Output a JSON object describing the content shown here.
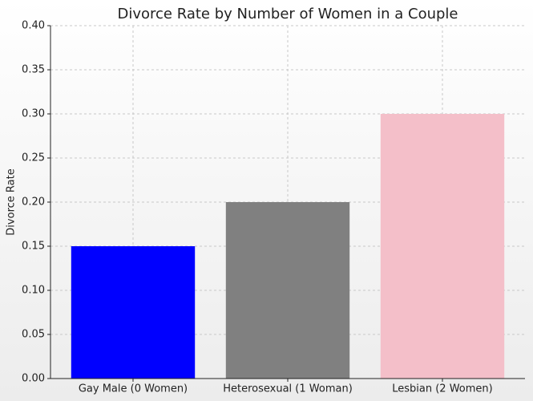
{
  "chart_data": {
    "type": "bar",
    "title": "Divorce Rate by Number of Women in a Couple",
    "y_label": "Divorce Rate",
    "categories": [
      "Gay Male (0 Women)",
      "Heterosexual (1 Woman)",
      "Lesbian (2 Women)"
    ],
    "values": [
      0.15,
      0.2,
      0.3
    ],
    "colors": [
      "#0000ff",
      "#808080",
      "#f4bfc9"
    ],
    "ylim": [
      0,
      0.4
    ],
    "yticks": [
      {
        "value": 0,
        "label": "0.00"
      },
      {
        "value": 0.05,
        "label": "0.05"
      },
      {
        "value": 0.1,
        "label": "0.10"
      },
      {
        "value": 0.15,
        "label": "0.15"
      },
      {
        "value": 0.2,
        "label": "0.20"
      },
      {
        "value": 0.25,
        "label": "0.25"
      },
      {
        "value": 0.3,
        "label": "0.30"
      },
      {
        "value": 0.35,
        "label": "0.35"
      },
      {
        "value": 0.4,
        "label": "0.40"
      }
    ],
    "grid": true
  }
}
